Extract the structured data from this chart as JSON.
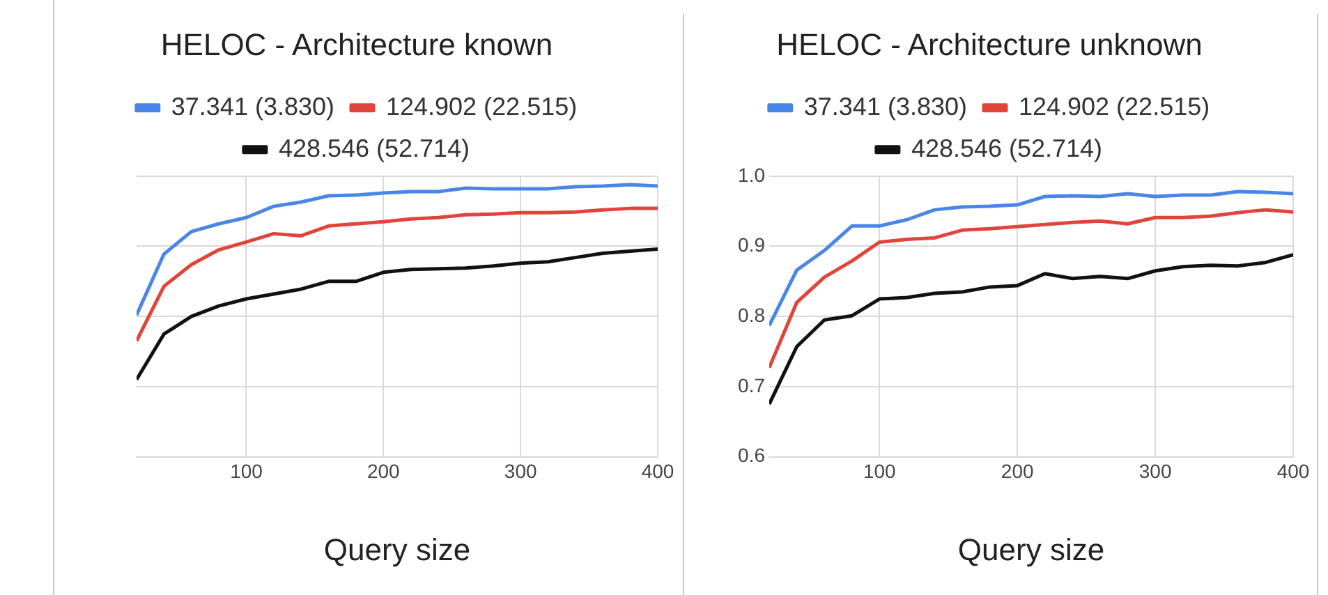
{
  "chart_data": [
    {
      "type": "line",
      "title": "HELOC - Architecture known",
      "xlabel": "Query size",
      "x": [
        20,
        40,
        60,
        80,
        100,
        120,
        140,
        160,
        180,
        200,
        220,
        240,
        260,
        280,
        300,
        320,
        340,
        360,
        380,
        400
      ],
      "series": [
        {
          "name": "37.341 (3.830)",
          "color": "#4a86e8",
          "values": [
            0.802,
            0.889,
            0.921,
            0.932,
            0.941,
            0.957,
            0.963,
            0.972,
            0.973,
            0.976,
            0.978,
            0.978,
            0.983,
            0.982,
            0.982,
            0.982,
            0.985,
            0.986,
            0.988,
            0.986
          ]
        },
        {
          "name": "124.902 (22.515)",
          "color": "#e0443a",
          "values": [
            0.765,
            0.843,
            0.874,
            0.895,
            0.906,
            0.918,
            0.915,
            0.929,
            0.932,
            0.935,
            0.939,
            0.941,
            0.945,
            0.946,
            0.948,
            0.948,
            0.949,
            0.952,
            0.954,
            0.954
          ]
        },
        {
          "name": "428.546 (52.714)",
          "color": "#111111",
          "values": [
            0.71,
            0.775,
            0.8,
            0.815,
            0.825,
            0.832,
            0.839,
            0.85,
            0.85,
            0.863,
            0.867,
            0.868,
            0.869,
            0.872,
            0.876,
            0.878,
            0.884,
            0.89,
            0.893,
            0.896
          ]
        }
      ],
      "xlim": [
        20,
        400
      ],
      "xticks": [
        100,
        200,
        300,
        400
      ],
      "ylim": [
        0.6,
        1.0
      ],
      "yticks": [
        0.6,
        0.7,
        0.8,
        0.9,
        1.0
      ],
      "tick_labels": "x",
      "grid": true,
      "legend": "top",
      "marker": "none",
      "line_style": "solid"
    },
    {
      "type": "line",
      "title": "HELOC - Architecture unknown",
      "xlabel": "Query size",
      "x": [
        20,
        40,
        60,
        80,
        100,
        120,
        140,
        160,
        180,
        200,
        220,
        240,
        260,
        280,
        300,
        320,
        340,
        360,
        380,
        400
      ],
      "series": [
        {
          "name": "37.341 (3.830)",
          "color": "#4a86e8",
          "values": [
            0.787,
            0.866,
            0.894,
            0.929,
            0.929,
            0.938,
            0.952,
            0.956,
            0.957,
            0.959,
            0.971,
            0.972,
            0.971,
            0.975,
            0.971,
            0.973,
            0.973,
            0.978,
            0.977,
            0.975
          ]
        },
        {
          "name": "124.902 (22.515)",
          "color": "#e0443a",
          "values": [
            0.727,
            0.82,
            0.856,
            0.879,
            0.906,
            0.91,
            0.912,
            0.923,
            0.925,
            0.928,
            0.931,
            0.934,
            0.936,
            0.932,
            0.941,
            0.941,
            0.943,
            0.948,
            0.952,
            0.949
          ]
        },
        {
          "name": "428.546 (52.714)",
          "color": "#111111",
          "values": [
            0.675,
            0.757,
            0.795,
            0.801,
            0.825,
            0.827,
            0.833,
            0.835,
            0.842,
            0.844,
            0.861,
            0.854,
            0.857,
            0.854,
            0.865,
            0.871,
            0.873,
            0.872,
            0.877,
            0.888
          ]
        }
      ],
      "xlim": [
        20,
        400
      ],
      "xticks": [
        100,
        200,
        300,
        400
      ],
      "ylim": [
        0.6,
        1.0
      ],
      "yticks": [
        {
          "value": 0.6,
          "label": "0.6"
        },
        {
          "value": 0.7,
          "label": "0.7"
        },
        {
          "value": 0.8,
          "label": "0.8"
        },
        {
          "value": 0.9,
          "label": "0.9"
        },
        {
          "value": 1.0,
          "label": "1.0"
        }
      ],
      "grid": true,
      "legend": "top",
      "marker": "none",
      "line_style": "solid"
    }
  ]
}
